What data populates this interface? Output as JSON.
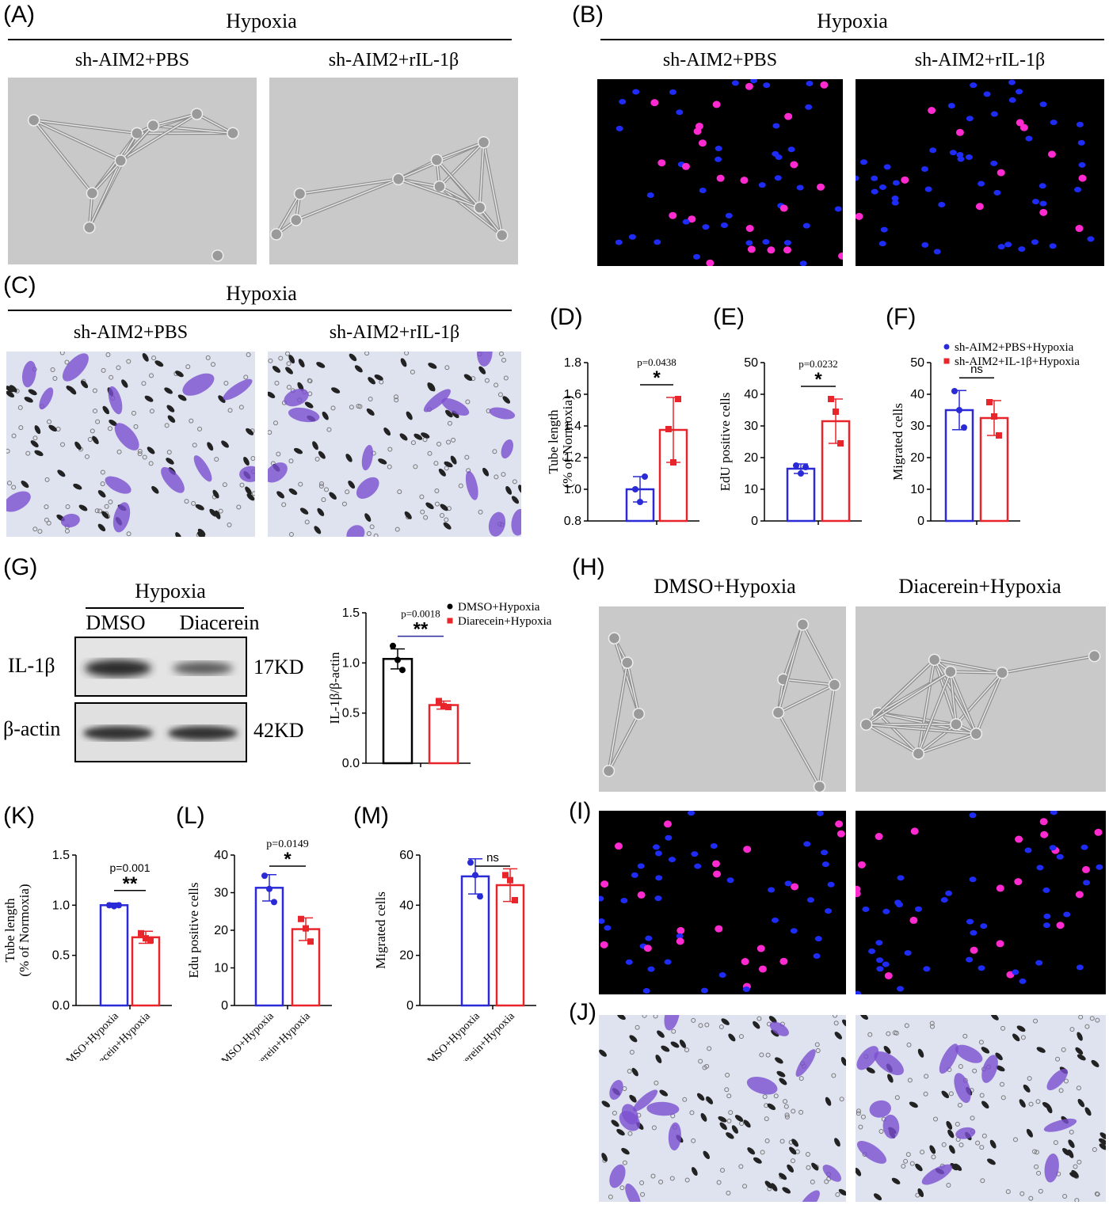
{
  "panels": {
    "A": {
      "label": "(A)",
      "header": "Hypoxia",
      "left": "sh-AIM2+PBS",
      "right": "sh-AIM2+rIL-1β"
    },
    "B": {
      "label": "(B)",
      "header": "Hypoxia",
      "left": "sh-AIM2+PBS",
      "right": "sh-AIM2+rIL-1β"
    },
    "C": {
      "label": "(C)",
      "header": "Hypoxia",
      "left": "sh-AIM2+PBS",
      "right": "sh-AIM2+rIL-1β"
    },
    "D": {
      "label": "(D)"
    },
    "E": {
      "label": "(E)"
    },
    "F": {
      "label": "(F)"
    },
    "G": {
      "label": "(G)",
      "header": "Hypoxia",
      "lane1": "DMSO",
      "lane2": "Diacerein",
      "band1": "IL-1β",
      "band2": "β-actin",
      "kd1": "17KD",
      "kd2": "42KD"
    },
    "H": {
      "label": "(H)",
      "left": "DMSO+Hypoxia",
      "right": "Diacerein+Hypoxia"
    },
    "I": {
      "label": "(I)"
    },
    "J": {
      "label": "(J)"
    },
    "K": {
      "label": "(K)"
    },
    "L": {
      "label": "(L)"
    },
    "M": {
      "label": "(M)"
    }
  },
  "colors": {
    "blue": "#2a2ad6",
    "red": "#e8252b",
    "black": "#000000",
    "cell_purple": "#7b4fd0"
  },
  "chart_data": [
    {
      "id": "D",
      "type": "bar",
      "categories": [
        "sh-AIM2+PBS+Hypoxia",
        "sh-AIM2+IL-1β+Hypoxia"
      ],
      "values": [
        1.0,
        1.375
      ],
      "errors": [
        0.08,
        0.205
      ],
      "points": [
        [
          1.0,
          0.92,
          1.08
        ],
        [
          1.38,
          1.17,
          1.57
        ]
      ],
      "ylabel": [
        "Tube length",
        "(% of Normoxia)"
      ],
      "ylim": [
        0.8,
        1.8
      ],
      "yticks": [
        "0.8",
        "1.0",
        "1.2",
        "1.4",
        "1.6",
        "1.8"
      ],
      "pvalue": "p=0.0438",
      "sig": "*"
    },
    {
      "id": "E",
      "type": "bar",
      "categories": [
        "sh-AIM2+PBS+Hypoxia",
        "sh-AIM2+IL-1β+Hypoxia"
      ],
      "values": [
        16.5,
        31.5
      ],
      "errors": [
        1.5,
        7.0
      ],
      "points": [
        [
          17.5,
          15.0,
          17.0
        ],
        [
          38.5,
          34.5,
          24.5
        ]
      ],
      "ylabel": [
        "EdU positive cells"
      ],
      "ylim": [
        0,
        50
      ],
      "yticks": [
        "0",
        "10",
        "20",
        "30",
        "40",
        "50"
      ],
      "pvalue": "p=0.0232",
      "sig": "*"
    },
    {
      "id": "F",
      "type": "bar",
      "categories": [
        "sh-AIM2+PBS+Hypoxia",
        "sh-AIM2+IL-1β+Hypoxia"
      ],
      "values": [
        35.0,
        32.5
      ],
      "errors": [
        6.2,
        5.5
      ],
      "points": [
        [
          41.0,
          35.0,
          29.5
        ],
        [
          37.5,
          33.0,
          27.0
        ]
      ],
      "ylabel": [
        "Migrated cells"
      ],
      "ylim": [
        0,
        50
      ],
      "yticks": [
        "0",
        "10",
        "20",
        "30",
        "40",
        "50"
      ],
      "sig": "ns",
      "legend": [
        "sh-AIM2+PBS+Hypoxia",
        "sh-AIM2+IL-1β+Hypoxia"
      ]
    },
    {
      "id": "G",
      "type": "bar",
      "categories": [
        "DMSO+Hypoxia",
        "Diarecein+Hypoxia"
      ],
      "values": [
        1.04,
        0.58
      ],
      "errors": [
        0.1,
        0.04
      ],
      "points": [
        [
          1.17,
          1.03,
          0.93
        ],
        [
          0.62,
          0.57,
          0.56
        ]
      ],
      "ylabel": [
        "IL-1β/β-actin"
      ],
      "ylim": [
        0,
        1.5
      ],
      "yticks": [
        "0.0",
        "0.5",
        "1.0",
        "1.5"
      ],
      "pvalue": "p=0.0018",
      "sig": "**",
      "legend": [
        "DMSO+Hypoxia",
        "Diarecein+Hypoxia"
      ]
    },
    {
      "id": "K",
      "type": "bar",
      "categories": [
        "DMSO+Hypoxia",
        "Diarecein+Hypoxia"
      ],
      "values": [
        1.0,
        0.68
      ],
      "errors": [
        0.02,
        0.06
      ],
      "points": [
        [
          1.0,
          0.99,
          1.0
        ],
        [
          0.72,
          0.67,
          0.65
        ]
      ],
      "ylabel": [
        "Tube length",
        "(% of Normoxia)"
      ],
      "ylim": [
        0,
        1.5
      ],
      "yticks": [
        "0.0",
        "0.5",
        "1.0",
        "1.5"
      ],
      "pvalue": "p=0.001",
      "sig": "**"
    },
    {
      "id": "L",
      "type": "bar",
      "categories": [
        "DMSO+Hypoxia",
        "Diacerein+Hypoxia"
      ],
      "values": [
        31.3,
        20.3
      ],
      "errors": [
        3.5,
        3.0
      ],
      "points": [
        [
          34.5,
          31.0,
          27.5
        ],
        [
          23.0,
          20.5,
          17.0
        ]
      ],
      "ylabel": [
        "Edu positive cells"
      ],
      "ylim": [
        0,
        40
      ],
      "yticks": [
        "0",
        "10",
        "20",
        "30",
        "40"
      ],
      "pvalue": "p=0.0149",
      "sig": "*"
    },
    {
      "id": "M",
      "type": "bar",
      "categories": [
        "DMSO+Hypoxia",
        "Diacerein+Hypoxia"
      ],
      "values": [
        51.5,
        48.0
      ],
      "errors": [
        7.0,
        6.5
      ],
      "points": [
        [
          57.0,
          52.0,
          43.5
        ],
        [
          52.0,
          50.0,
          42.0
        ]
      ],
      "ylabel": [
        "Migrated cells"
      ],
      "ylim": [
        0,
        60
      ],
      "yticks": [
        "0",
        "20",
        "40",
        "60"
      ],
      "sig": "ns"
    }
  ]
}
